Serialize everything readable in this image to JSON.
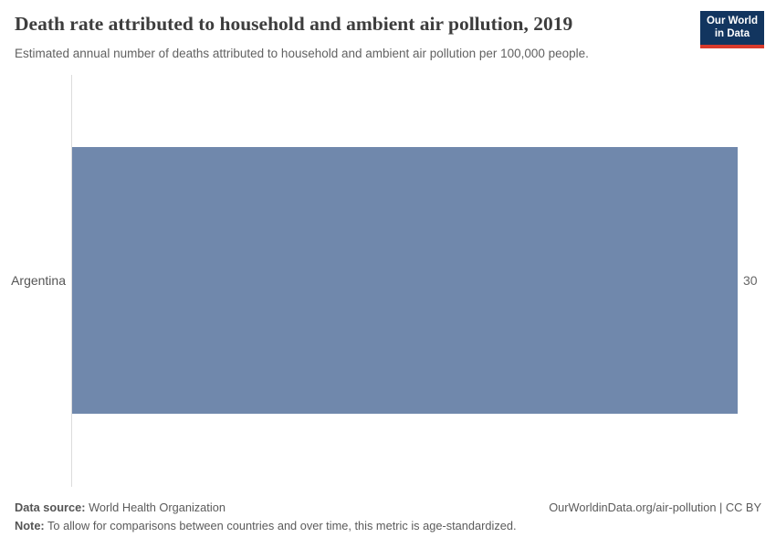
{
  "header": {
    "title": "Death rate attributed to household and ambient air pollution, 2019",
    "subtitle": "Estimated annual number of deaths attributed to household and ambient air pollution per 100,000 people.",
    "logo": {
      "line1": "Our World",
      "line2": "in Data"
    }
  },
  "chart_data": {
    "type": "bar",
    "orientation": "horizontal",
    "title": "Death rate attributed to household and ambient air pollution, 2019",
    "categories": [
      "Argentina"
    ],
    "values": [
      30
    ],
    "value_labels": [
      "30"
    ],
    "xlim": [
      0,
      30
    ],
    "xlabel": "",
    "ylabel": "",
    "grid": "off",
    "legend": "none",
    "bar_color": "#7088ac"
  },
  "footer": {
    "data_source_label": "Data source:",
    "data_source_value": " World Health Organization",
    "note_label": "Note:",
    "note_value": " To allow for comparisons between countries and over time, this metric is age-standardized.",
    "license": "OurWorldinData.org/air-pollution | CC BY"
  },
  "colors": {
    "bar": "#7088ac",
    "axis_line": "#dcdcdc",
    "logo_background": "#12355f",
    "logo_accent": "#d93a2b"
  }
}
